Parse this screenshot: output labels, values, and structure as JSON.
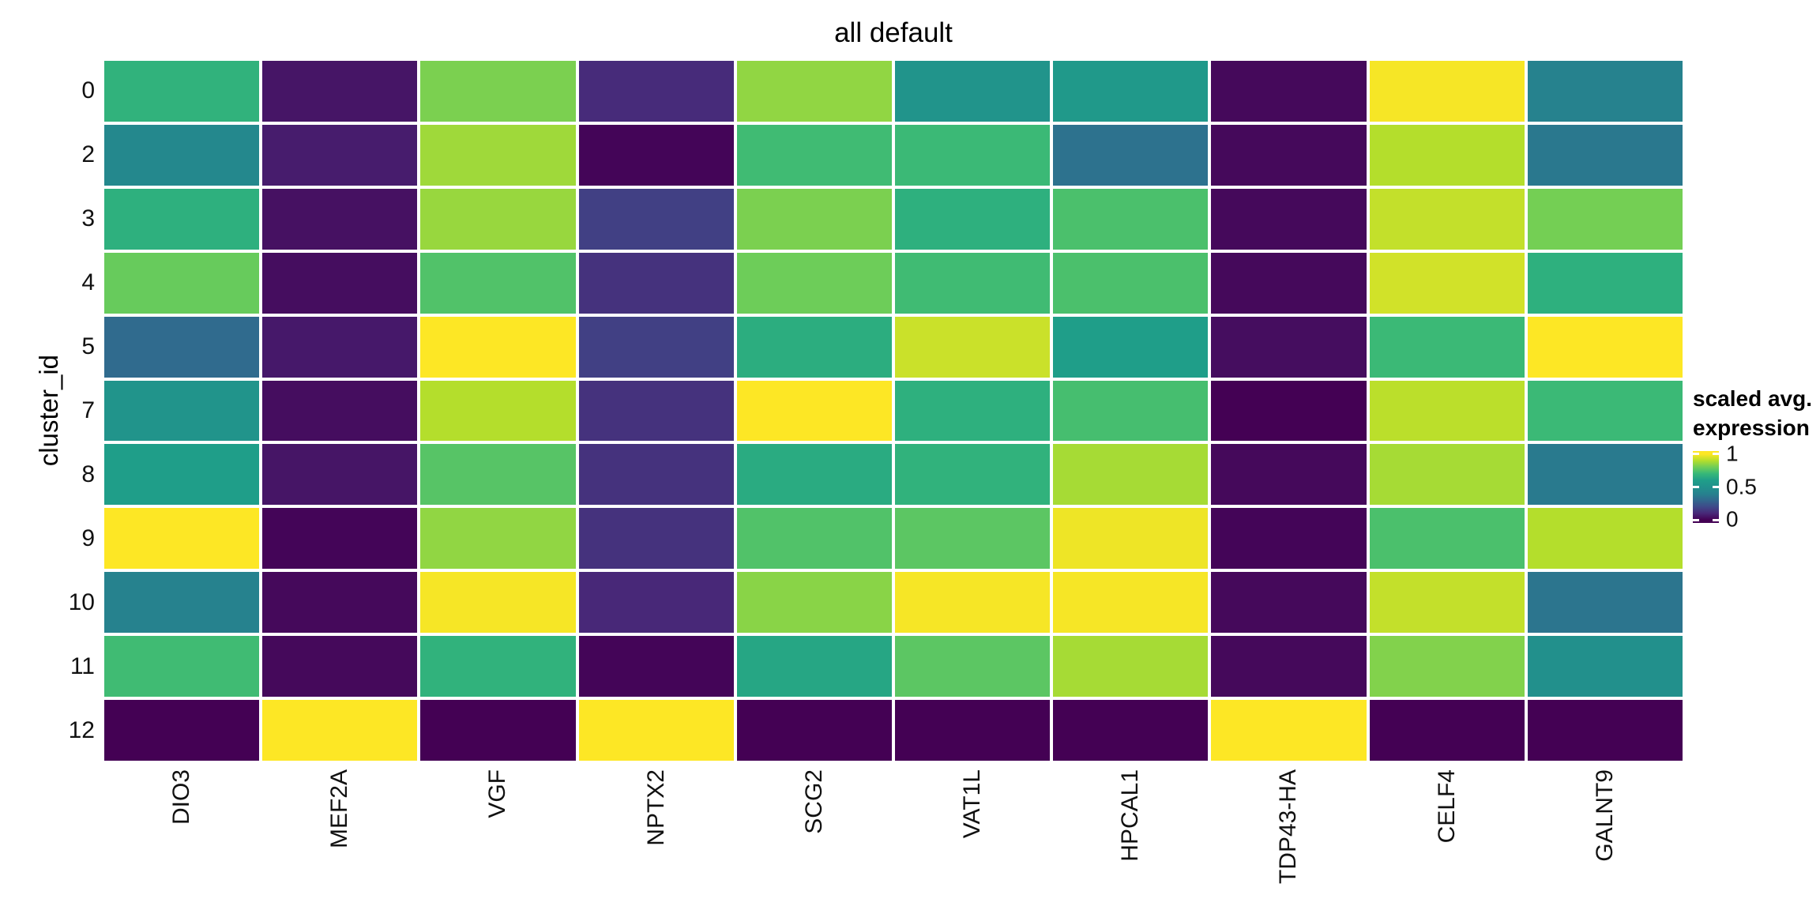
{
  "title": "all default",
  "axes": {
    "y_title": "cluster_id"
  },
  "legend": {
    "title_line1": "scaled avg.",
    "title_line2": "expression",
    "ticks": [
      {
        "label": "1",
        "value": 1
      },
      {
        "label": "0.5",
        "value": 0.5
      },
      {
        "label": "0",
        "value": 0
      }
    ],
    "bar_range_min": -0.047,
    "bar_range_max": 1.047
  },
  "chart_data": {
    "type": "heatmap",
    "title": "all default",
    "xlabel": "",
    "ylabel": "cluster_id",
    "legend_title": "scaled avg. expression",
    "legend_position": "right",
    "grid": false,
    "x_categories": [
      "DIO3",
      "MEF2A",
      "VGF",
      "NPTX2",
      "SCG2",
      "VAT1L",
      "HPCAL1",
      "TDP43-HA",
      "CELF4",
      "GALNT9"
    ],
    "y_categories": [
      "0",
      "2",
      "3",
      "4",
      "5",
      "7",
      "8",
      "9",
      "10",
      "11",
      "12"
    ],
    "value_range": [
      0,
      1
    ],
    "values": [
      [
        0.68,
        0.05,
        0.82,
        0.11,
        0.85,
        0.52,
        0.56,
        0.02,
        0.99,
        0.4
      ],
      [
        0.44,
        0.07,
        0.87,
        0.01,
        0.72,
        0.71,
        0.34,
        0.02,
        0.9,
        0.36
      ],
      [
        0.67,
        0.04,
        0.86,
        0.17,
        0.82,
        0.67,
        0.74,
        0.02,
        0.92,
        0.81
      ],
      [
        0.79,
        0.03,
        0.75,
        0.13,
        0.8,
        0.72,
        0.74,
        0.02,
        0.94,
        0.67
      ],
      [
        0.31,
        0.06,
        1.0,
        0.17,
        0.66,
        0.93,
        0.6,
        0.03,
        0.71,
        1.0
      ],
      [
        0.52,
        0.03,
        0.9,
        0.13,
        1.0,
        0.67,
        0.73,
        0.0,
        0.91,
        0.71
      ],
      [
        0.6,
        0.05,
        0.76,
        0.13,
        0.65,
        0.68,
        0.88,
        0.02,
        0.88,
        0.37
      ],
      [
        1.0,
        0.01,
        0.85,
        0.13,
        0.75,
        0.77,
        0.98,
        0.01,
        0.74,
        0.9
      ],
      [
        0.4,
        0.02,
        0.99,
        0.1,
        0.84,
        0.99,
        0.99,
        0.02,
        0.92,
        0.35
      ],
      [
        0.72,
        0.02,
        0.68,
        0.01,
        0.63,
        0.77,
        0.88,
        0.02,
        0.83,
        0.49
      ],
      [
        0.0,
        1.0,
        0.0,
        1.0,
        0.0,
        0.0,
        0.0,
        1.0,
        0.0,
        0.0
      ]
    ],
    "colormap": {
      "name": "viridis",
      "anchors": [
        "#440154",
        "#482878",
        "#3E4A89",
        "#31688E",
        "#26828E",
        "#21918C",
        "#1F9E89",
        "#35B779",
        "#6DCD59",
        "#B4DE2C",
        "#FDE725"
      ]
    }
  }
}
